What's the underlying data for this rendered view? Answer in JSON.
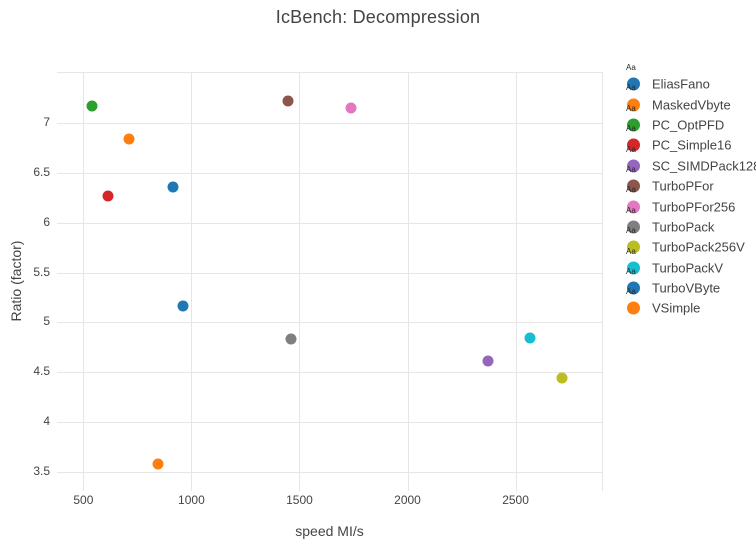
{
  "chart_data": {
    "type": "scatter",
    "title": "IcBench: Decompression",
    "xlabel": "speed MI/s",
    "ylabel": "Ratio (factor)",
    "xlim": [
      378,
      2900
    ],
    "ylim": [
      3.31,
      7.5
    ],
    "x_tick_values": [
      500,
      1000,
      1500,
      2000,
      2500
    ],
    "x_tick_labels": [
      "500",
      "1000",
      "1500",
      "2000",
      "2500"
    ],
    "y_tick_values": [
      3.5,
      4,
      4.5,
      5,
      5.5,
      6,
      6.5,
      7
    ],
    "y_tick_labels": [
      "3.5",
      "4",
      "4.5",
      "5",
      "5.5",
      "6",
      "6.5",
      "7"
    ],
    "grid": true,
    "legend_position": "right",
    "legend_sample_text": "Aa",
    "gridline_color": "#e6e6e6",
    "text_color": "#444",
    "series": [
      {
        "name": "EliasFano",
        "color": "#1f77b4",
        "x": 915,
        "y": 6.36
      },
      {
        "name": "MaskedVbyte",
        "color": "#ff7f0e",
        "x": 847,
        "y": 3.58
      },
      {
        "name": "PC_OptPFD",
        "color": "#2ca02c",
        "x": 539,
        "y": 7.17
      },
      {
        "name": "PC_Simple16",
        "color": "#d62728",
        "x": 613,
        "y": 6.27
      },
      {
        "name": "SC_SIMDPack128",
        "color": "#9467bd",
        "x": 2371,
        "y": 4.61
      },
      {
        "name": "TurboPFor",
        "color": "#8c564b",
        "x": 1445,
        "y": 7.22
      },
      {
        "name": "TurboPFor256",
        "color": "#e377c2",
        "x": 1738,
        "y": 7.15
      },
      {
        "name": "TurboPack",
        "color": "#7f7f7f",
        "x": 1462,
        "y": 4.83
      },
      {
        "name": "TurboPack256V",
        "color": "#bcbd22",
        "x": 2713,
        "y": 4.44
      },
      {
        "name": "TurboPackV",
        "color": "#17becf",
        "x": 2569,
        "y": 4.84
      },
      {
        "name": "TurboVByte",
        "color": "#1f77b4",
        "x": 962,
        "y": 5.16
      },
      {
        "name": "VSimple",
        "color": "#ff7f0e",
        "x": 710,
        "y": 6.84
      }
    ]
  }
}
